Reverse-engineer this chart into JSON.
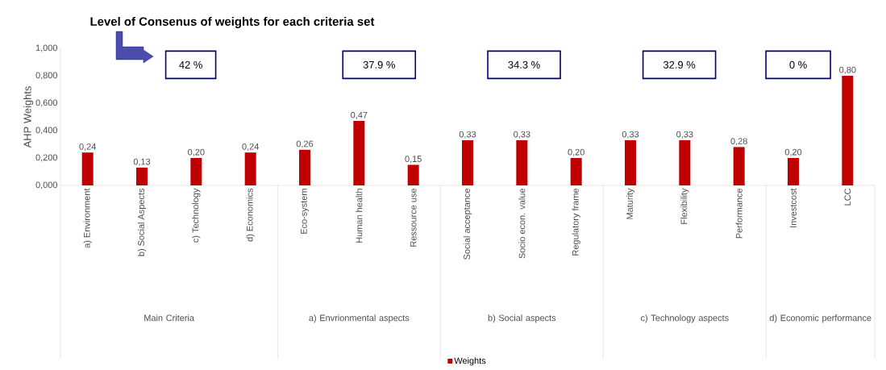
{
  "chart_data": {
    "type": "bar",
    "title": "Level of Consenus of weights for each criteria set",
    "ylabel": "AHP Weights",
    "categories": [
      "a) Environment",
      "b) Social Aspects",
      "c) Technology",
      "d) Economics",
      "Eco-system",
      "Human health",
      "Ressource use",
      "Social acceptance",
      "Socio econ. value",
      "Regulatory frame",
      "Maturity",
      "Flexibility",
      "Performance",
      "Investcost",
      "LCC"
    ],
    "series": [
      {
        "name": "Weights",
        "color": "#c00000",
        "values": [
          0.24,
          0.13,
          0.2,
          0.24,
          0.26,
          0.47,
          0.15,
          0.33,
          0.33,
          0.2,
          0.33,
          0.33,
          0.28,
          0.2,
          0.8
        ],
        "value_labels": [
          "0,24",
          "0,13",
          "0,20",
          "0,24",
          "0,26",
          "0,47",
          "0,15",
          "0,33",
          "0,33",
          "0,20",
          "0,33",
          "0,33",
          "0,28",
          "0,20",
          "0,80"
        ]
      }
    ],
    "ylim": [
      0,
      1
    ],
    "yticks": [
      {
        "value": 0,
        "label": "0,000"
      },
      {
        "value": 0.2,
        "label": "0,200"
      },
      {
        "value": 0.4,
        "label": "0,400"
      },
      {
        "value": 0.6,
        "label": "0,600"
      },
      {
        "value": 0.8,
        "label": "0,800"
      },
      {
        "value": 1,
        "label": "1,000"
      }
    ],
    "grid": false,
    "legend": "bottom",
    "annotations": [
      "42 %",
      "37.9 %",
      "34.3 %",
      "32.9 %",
      "0 %",
      "Main Criteria",
      "a) Envrionmental aspects",
      "b) Social aspects",
      "c) Technology aspects",
      "d) Economic performance"
    ]
  }
}
